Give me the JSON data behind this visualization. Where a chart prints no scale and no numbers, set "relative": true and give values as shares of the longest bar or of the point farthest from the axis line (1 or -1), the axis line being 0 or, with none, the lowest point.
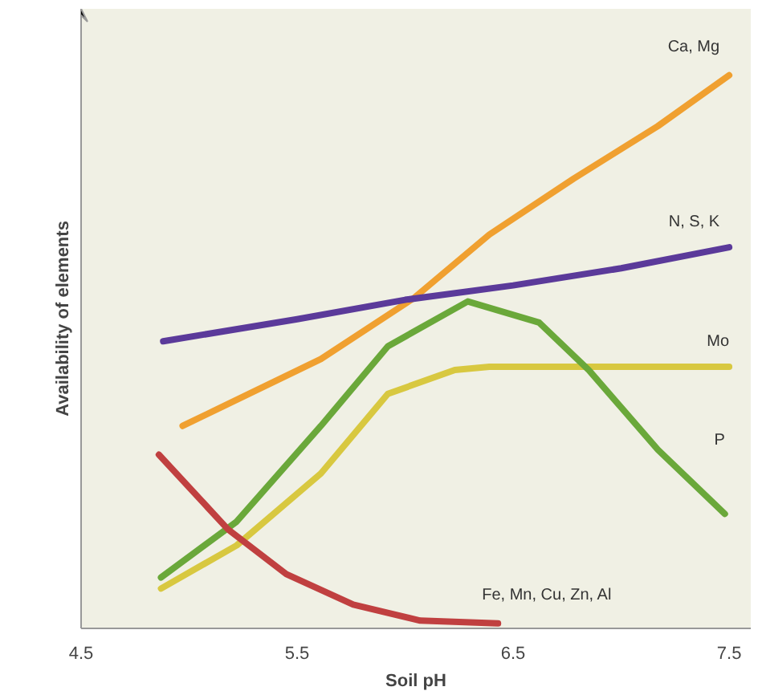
{
  "chart_data": {
    "type": "line",
    "relative": true,
    "xlabel": "Soil pH",
    "ylabel": "Availability of elements",
    "xlim": [
      4.5,
      7.6
    ],
    "xticks": [
      4.5,
      5.5,
      6.5,
      7.5
    ],
    "grid": false,
    "marker": "none",
    "line_style": "solid",
    "series": [
      {
        "name": "Ca, Mg",
        "color": "#f0a030",
        "x": [
          4.97,
          5.61,
          6.04,
          6.39,
          6.78,
          7.17,
          7.5
        ],
        "values": [
          0.366,
          0.487,
          0.597,
          0.712,
          0.813,
          0.908,
          1.0
        ]
      },
      {
        "name": "N, S, K",
        "color": "#5b3a9a",
        "x": [
          4.88,
          5.5,
          6.0,
          6.5,
          7.0,
          7.5
        ],
        "values": [
          0.519,
          0.559,
          0.594,
          0.62,
          0.651,
          0.689
        ]
      },
      {
        "name": "Mo",
        "color": "#d8c840",
        "x": [
          4.87,
          5.22,
          5.61,
          5.92,
          6.23,
          6.39,
          7.5
        ],
        "values": [
          0.072,
          0.15,
          0.28,
          0.424,
          0.467,
          0.473,
          0.473
        ]
      },
      {
        "name": "P",
        "color": "#6aa83a",
        "x": [
          4.87,
          5.22,
          5.61,
          5.92,
          6.29,
          6.62,
          6.85,
          7.17,
          7.48
        ],
        "values": [
          0.092,
          0.193,
          0.366,
          0.51,
          0.591,
          0.553,
          0.467,
          0.323,
          0.207
        ]
      },
      {
        "name": "Fe, Mn, Cu, Zn, Al",
        "color": "#c04040",
        "x": [
          4.86,
          5.18,
          5.45,
          5.76,
          6.07,
          6.43
        ],
        "values": [
          0.314,
          0.179,
          0.098,
          0.043,
          0.014,
          0.009
        ]
      }
    ]
  }
}
